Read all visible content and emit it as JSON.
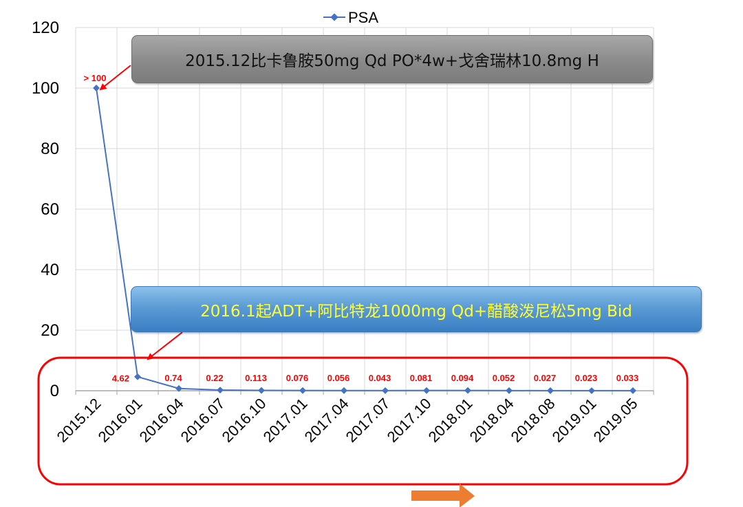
{
  "chart_data": {
    "type": "line",
    "legend": "PSA",
    "legend_position": "top",
    "categories": [
      "2015.12",
      "2016.01",
      "2016.04",
      "2016.07",
      "2016.10",
      "2017.01",
      "2017.04",
      "2017.07",
      "2017.10",
      "2018.01",
      "2018.04",
      "2018.08",
      "2019.01",
      "2019.05"
    ],
    "series": [
      {
        "name": "PSA",
        "values": [
          100,
          4.62,
          0.74,
          0.22,
          0.113,
          0.076,
          0.056,
          0.043,
          0.081,
          0.094,
          0.052,
          0.027,
          0.023,
          0.033
        ],
        "labels": [
          "> 100",
          "4.62",
          "0.74",
          "0.22",
          "0.113",
          "0.076",
          "0.056",
          "0.043",
          "0.081",
          "0.094",
          "0.052",
          "0.027",
          "0.023",
          "0.033"
        ],
        "color": "#4472c4"
      }
    ],
    "ylim": [
      0,
      120
    ],
    "yticks": [
      0,
      20,
      40,
      60,
      80,
      100,
      120
    ],
    "grid": true,
    "annotations": [
      {
        "text": "2015.12比卡鲁胺50mg Qd PO*4w+戈舍瑞林10.8mg H",
        "points_to": "2015.12"
      },
      {
        "text": "2016.1起ADT+阿比特龙1000mg Qd+醋酸泼尼松5mg Bid",
        "points_to": "2016.01"
      }
    ]
  },
  "colors": {
    "line": "#4472c4",
    "data_label": "#ff0000",
    "highlight_box": "#ff0000",
    "arrow_orange": "#ed7d31",
    "grid": "#d9d9d9"
  }
}
